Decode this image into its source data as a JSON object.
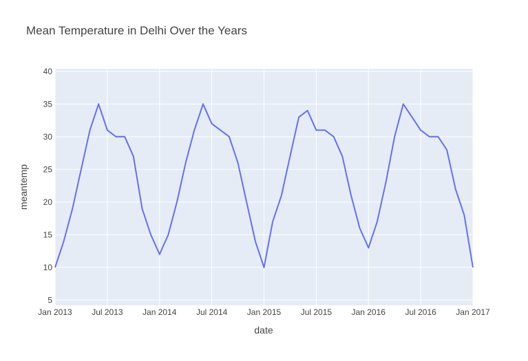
{
  "chart_data": {
    "type": "line",
    "title": "Mean Temperature in Delhi Over the Years",
    "x_label": "date",
    "y_label": "meantemp",
    "x": [
      "2013-01",
      "2013-02",
      "2013-03",
      "2013-04",
      "2013-05",
      "2013-06",
      "2013-07",
      "2013-08",
      "2013-09",
      "2013-10",
      "2013-11",
      "2013-12",
      "2014-01",
      "2014-02",
      "2014-03",
      "2014-04",
      "2014-05",
      "2014-06",
      "2014-07",
      "2014-08",
      "2014-09",
      "2014-10",
      "2014-11",
      "2014-12",
      "2015-01",
      "2015-02",
      "2015-03",
      "2015-04",
      "2015-05",
      "2015-06",
      "2015-07",
      "2015-08",
      "2015-09",
      "2015-10",
      "2015-11",
      "2015-12",
      "2016-01",
      "2016-02",
      "2016-03",
      "2016-04",
      "2016-05",
      "2016-06",
      "2016-07",
      "2016-08",
      "2016-09",
      "2016-10",
      "2016-11",
      "2016-12",
      "2017-01"
    ],
    "series": [
      {
        "name": "meantemp",
        "color": "#636efa",
        "values": [
          10,
          14,
          19,
          25,
          31,
          35,
          31,
          30,
          30,
          27,
          19,
          15,
          12,
          15,
          20,
          26,
          31,
          35,
          32,
          31,
          30,
          26,
          20,
          14,
          10,
          17,
          21,
          27,
          33,
          34,
          31,
          31,
          30,
          27,
          21,
          16,
          13,
          17,
          23,
          30,
          35,
          33,
          31,
          30,
          30,
          28,
          22,
          18,
          10
        ]
      }
    ],
    "xlim": [
      "2013-01",
      "2017-01"
    ],
    "xticks": [
      {
        "value": "2013-01",
        "label": "Jan 2013"
      },
      {
        "value": "2013-07",
        "label": "Jul 2013"
      },
      {
        "value": "2014-01",
        "label": "Jan 2014"
      },
      {
        "value": "2014-07",
        "label": "Jul 2014"
      },
      {
        "value": "2015-01",
        "label": "Jan 2015"
      },
      {
        "value": "2015-07",
        "label": "Jul 2015"
      },
      {
        "value": "2016-01",
        "label": "Jan 2016"
      },
      {
        "value": "2016-07",
        "label": "Jul 2016"
      },
      {
        "value": "2017-01",
        "label": "Jan 2017"
      }
    ],
    "ylim": [
      4.2,
      40.4
    ],
    "yticks": [
      5,
      10,
      15,
      20,
      25,
      30,
      35,
      40
    ],
    "grid": true
  }
}
